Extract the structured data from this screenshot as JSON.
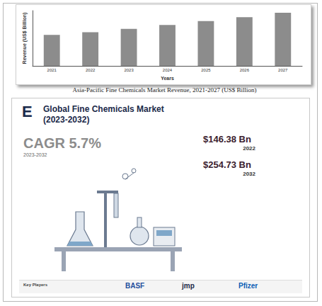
{
  "chart_data": {
    "type": "bar",
    "caption": "Asia-Pacific Fine Chemicals Market Revenue, 2021-2027 (US$ Billion)",
    "x_label": "Years",
    "y_label": "Revenue (US$ Billion)",
    "categories": [
      "2021",
      "2022",
      "2023",
      "2024",
      "2025",
      "2026",
      "2027"
    ],
    "values": [
      56,
      61,
      67,
      74,
      81,
      88,
      96
    ],
    "color": "#8c8c8c",
    "ylim": [
      0,
      100
    ],
    "grid": false,
    "tick_labels": "x"
  },
  "infographic": {
    "logo": "E",
    "title": "Global Fine Chemicals Market",
    "period": "(2023-2032)",
    "cagr": {
      "label": "CAGR 5.7%",
      "years": "2023-2032"
    },
    "market_sizes": [
      {
        "value": "$146.38 Bn",
        "year": "2022"
      },
      {
        "value": "$254.73 Bn",
        "year": "2032"
      }
    ],
    "key_players_label": "Key Players",
    "key_players": [
      "BASF",
      "jmp",
      "Pfizer"
    ]
  }
}
